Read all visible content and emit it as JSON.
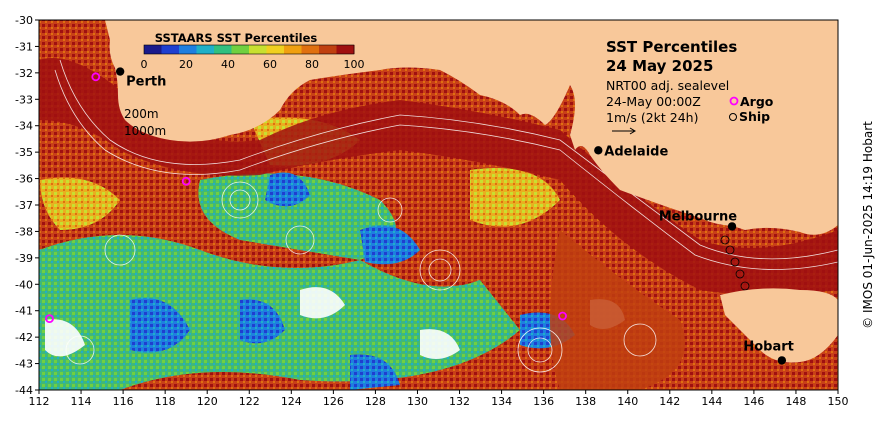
{
  "title": {
    "line1": "SST Percentiles",
    "line2": "24 May 2025"
  },
  "info": {
    "sealevel": "NRT00 adj. sealevel",
    "date": "24-May 00:00Z",
    "argo_label": "Argo",
    "ship_label": "Ship",
    "current_scale": "1m/s (2kt 24h)"
  },
  "colorbar": {
    "title": "SSTAARS SST Percentiles",
    "ticks": [
      "0",
      "20",
      "40",
      "60",
      "80",
      "100"
    ],
    "colors": [
      "#1a1a8c",
      "#1f3fd0",
      "#1e7fe0",
      "#1fb0c8",
      "#30c080",
      "#70d040",
      "#c8e030",
      "#f0d020",
      "#f0a010",
      "#e07010",
      "#c04010",
      "#a01010"
    ]
  },
  "depth_labels": [
    "200m",
    "1000m"
  ],
  "cities": [
    {
      "name": "Perth",
      "lon": 115.86,
      "lat": -31.95
    },
    {
      "name": "Adelaide",
      "lon": 138.6,
      "lat": -34.93
    },
    {
      "name": "Melbourne",
      "lon": 144.96,
      "lat": -37.81
    },
    {
      "name": "Hobart",
      "lon": 147.33,
      "lat": -42.88
    }
  ],
  "axes": {
    "lon_ticks": [
      "112",
      "114",
      "116",
      "118",
      "120",
      "122",
      "124",
      "126",
      "128",
      "130",
      "132",
      "134",
      "136",
      "138",
      "140",
      "142",
      "144",
      "146",
      "148",
      "150"
    ],
    "lat_ticks": [
      "-30",
      "-31",
      "-32",
      "-33",
      "-34",
      "-35",
      "-36",
      "-37",
      "-38",
      "-39",
      "-40",
      "-41",
      "-42",
      "-43",
      "-44"
    ],
    "lon_range": [
      112,
      150
    ],
    "lat_range": [
      -44,
      -30
    ]
  },
  "argo_floats": [
    {
      "lon": 114.7,
      "lat": -32.15
    },
    {
      "lon": 119.0,
      "lat": -36.1
    },
    {
      "lon": 112.5,
      "lat": -41.3
    },
    {
      "lon": 136.9,
      "lat": -41.2
    }
  ],
  "copyright": "© IMOS 01-Jun-2025 14:19 Hobart",
  "colors": {
    "land": "#f8c89a",
    "hot": "#a01010",
    "warm": "#c8401a",
    "mid": "#f0c020",
    "cool": "#60c060",
    "cold": "#1e80d8",
    "argo": "#ff00ff"
  }
}
